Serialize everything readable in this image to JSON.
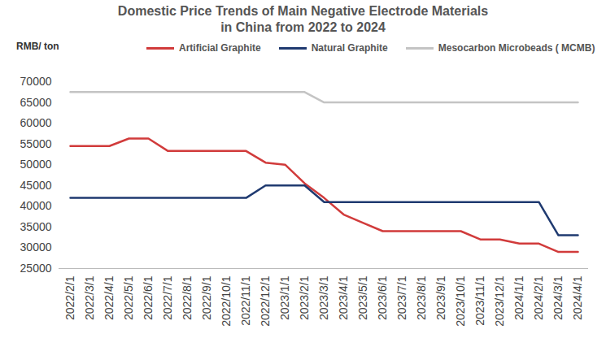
{
  "chart_data": {
    "type": "line",
    "title": "Domestic Price Trends of Main Negative Electrode Materials\nin China from 2022 to 2024",
    "y_label": "RMB/ ton",
    "categories": [
      "2022/2/1",
      "2022/3/1",
      "2022/4/1",
      "2022/5/1",
      "2022/6/1",
      "2022/7/1",
      "2022/8/1",
      "2022/9/1",
      "2022/10/1",
      "2022/11/1",
      "2022/12/1",
      "2023/1/1",
      "2023/2/1",
      "2023/3/1",
      "2023/4/1",
      "2023/5/1",
      "2023/6/1",
      "2023/7/1",
      "2023/8/1",
      "2023/9/1",
      "2023/10/1",
      "2023/11/1",
      "2023/12/1",
      "2024/1/1",
      "2024/2/1",
      "2024/3/1",
      "2024/4/1"
    ],
    "series": [
      {
        "name": "Artificial Graphite",
        "color": "#d13b3b",
        "values": [
          54500,
          54500,
          54500,
          56300,
          56300,
          53300,
          53300,
          53300,
          53300,
          53300,
          50500,
          50000,
          45500,
          42000,
          38000,
          36000,
          34000,
          34000,
          34000,
          34000,
          34000,
          32000,
          32000,
          31000,
          31000,
          29000,
          29000
        ]
      },
      {
        "name": "Natural Graphite",
        "color": "#1f3a70",
        "values": [
          42000,
          42000,
          42000,
          42000,
          42000,
          42000,
          42000,
          42000,
          42000,
          42000,
          45000,
          45000,
          45000,
          41000,
          41000,
          41000,
          41000,
          41000,
          41000,
          41000,
          41000,
          41000,
          41000,
          41000,
          41000,
          33000,
          33000
        ]
      },
      {
        "name": "Mesocarbon Microbeads ( MCMB)",
        "color": "#c4c4c4",
        "values": [
          67500,
          67500,
          67500,
          67500,
          67500,
          67500,
          67500,
          67500,
          67500,
          67500,
          67500,
          67500,
          67500,
          65000,
          65000,
          65000,
          65000,
          65000,
          65000,
          65000,
          65000,
          65000,
          65000,
          65000,
          65000,
          65000,
          65000
        ]
      }
    ],
    "ylim": [
      25000,
      70000
    ],
    "yticks": [
      25000,
      30000,
      35000,
      40000,
      45000,
      50000,
      55000,
      60000,
      65000,
      70000
    ],
    "grid": false,
    "legend": "top"
  }
}
